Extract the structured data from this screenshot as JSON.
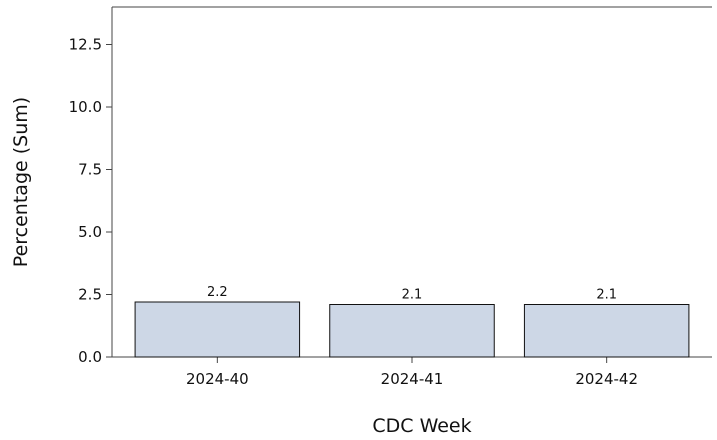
{
  "chart_data": {
    "type": "bar",
    "categories": [
      "2024-40",
      "2024-41",
      "2024-42"
    ],
    "values": [
      2.2,
      2.1,
      2.1
    ],
    "data_labels": [
      "2.2",
      "2.1",
      "2.1"
    ],
    "title": "",
    "xlabel": "CDC Week",
    "ylabel": "Percentage (Sum)",
    "ylim": [
      0,
      14
    ],
    "yticks": [
      0.0,
      2.5,
      5.0,
      7.5,
      10.0,
      12.5
    ],
    "ytick_labels": [
      "0.0",
      "2.5",
      "5.0",
      "7.5",
      "10.0",
      "12.5"
    ],
    "grid": false,
    "legend": "none",
    "colors": {
      "bar_fill": "#cdd7e6",
      "bar_stroke": "#111111",
      "axis": "#444444"
    }
  }
}
